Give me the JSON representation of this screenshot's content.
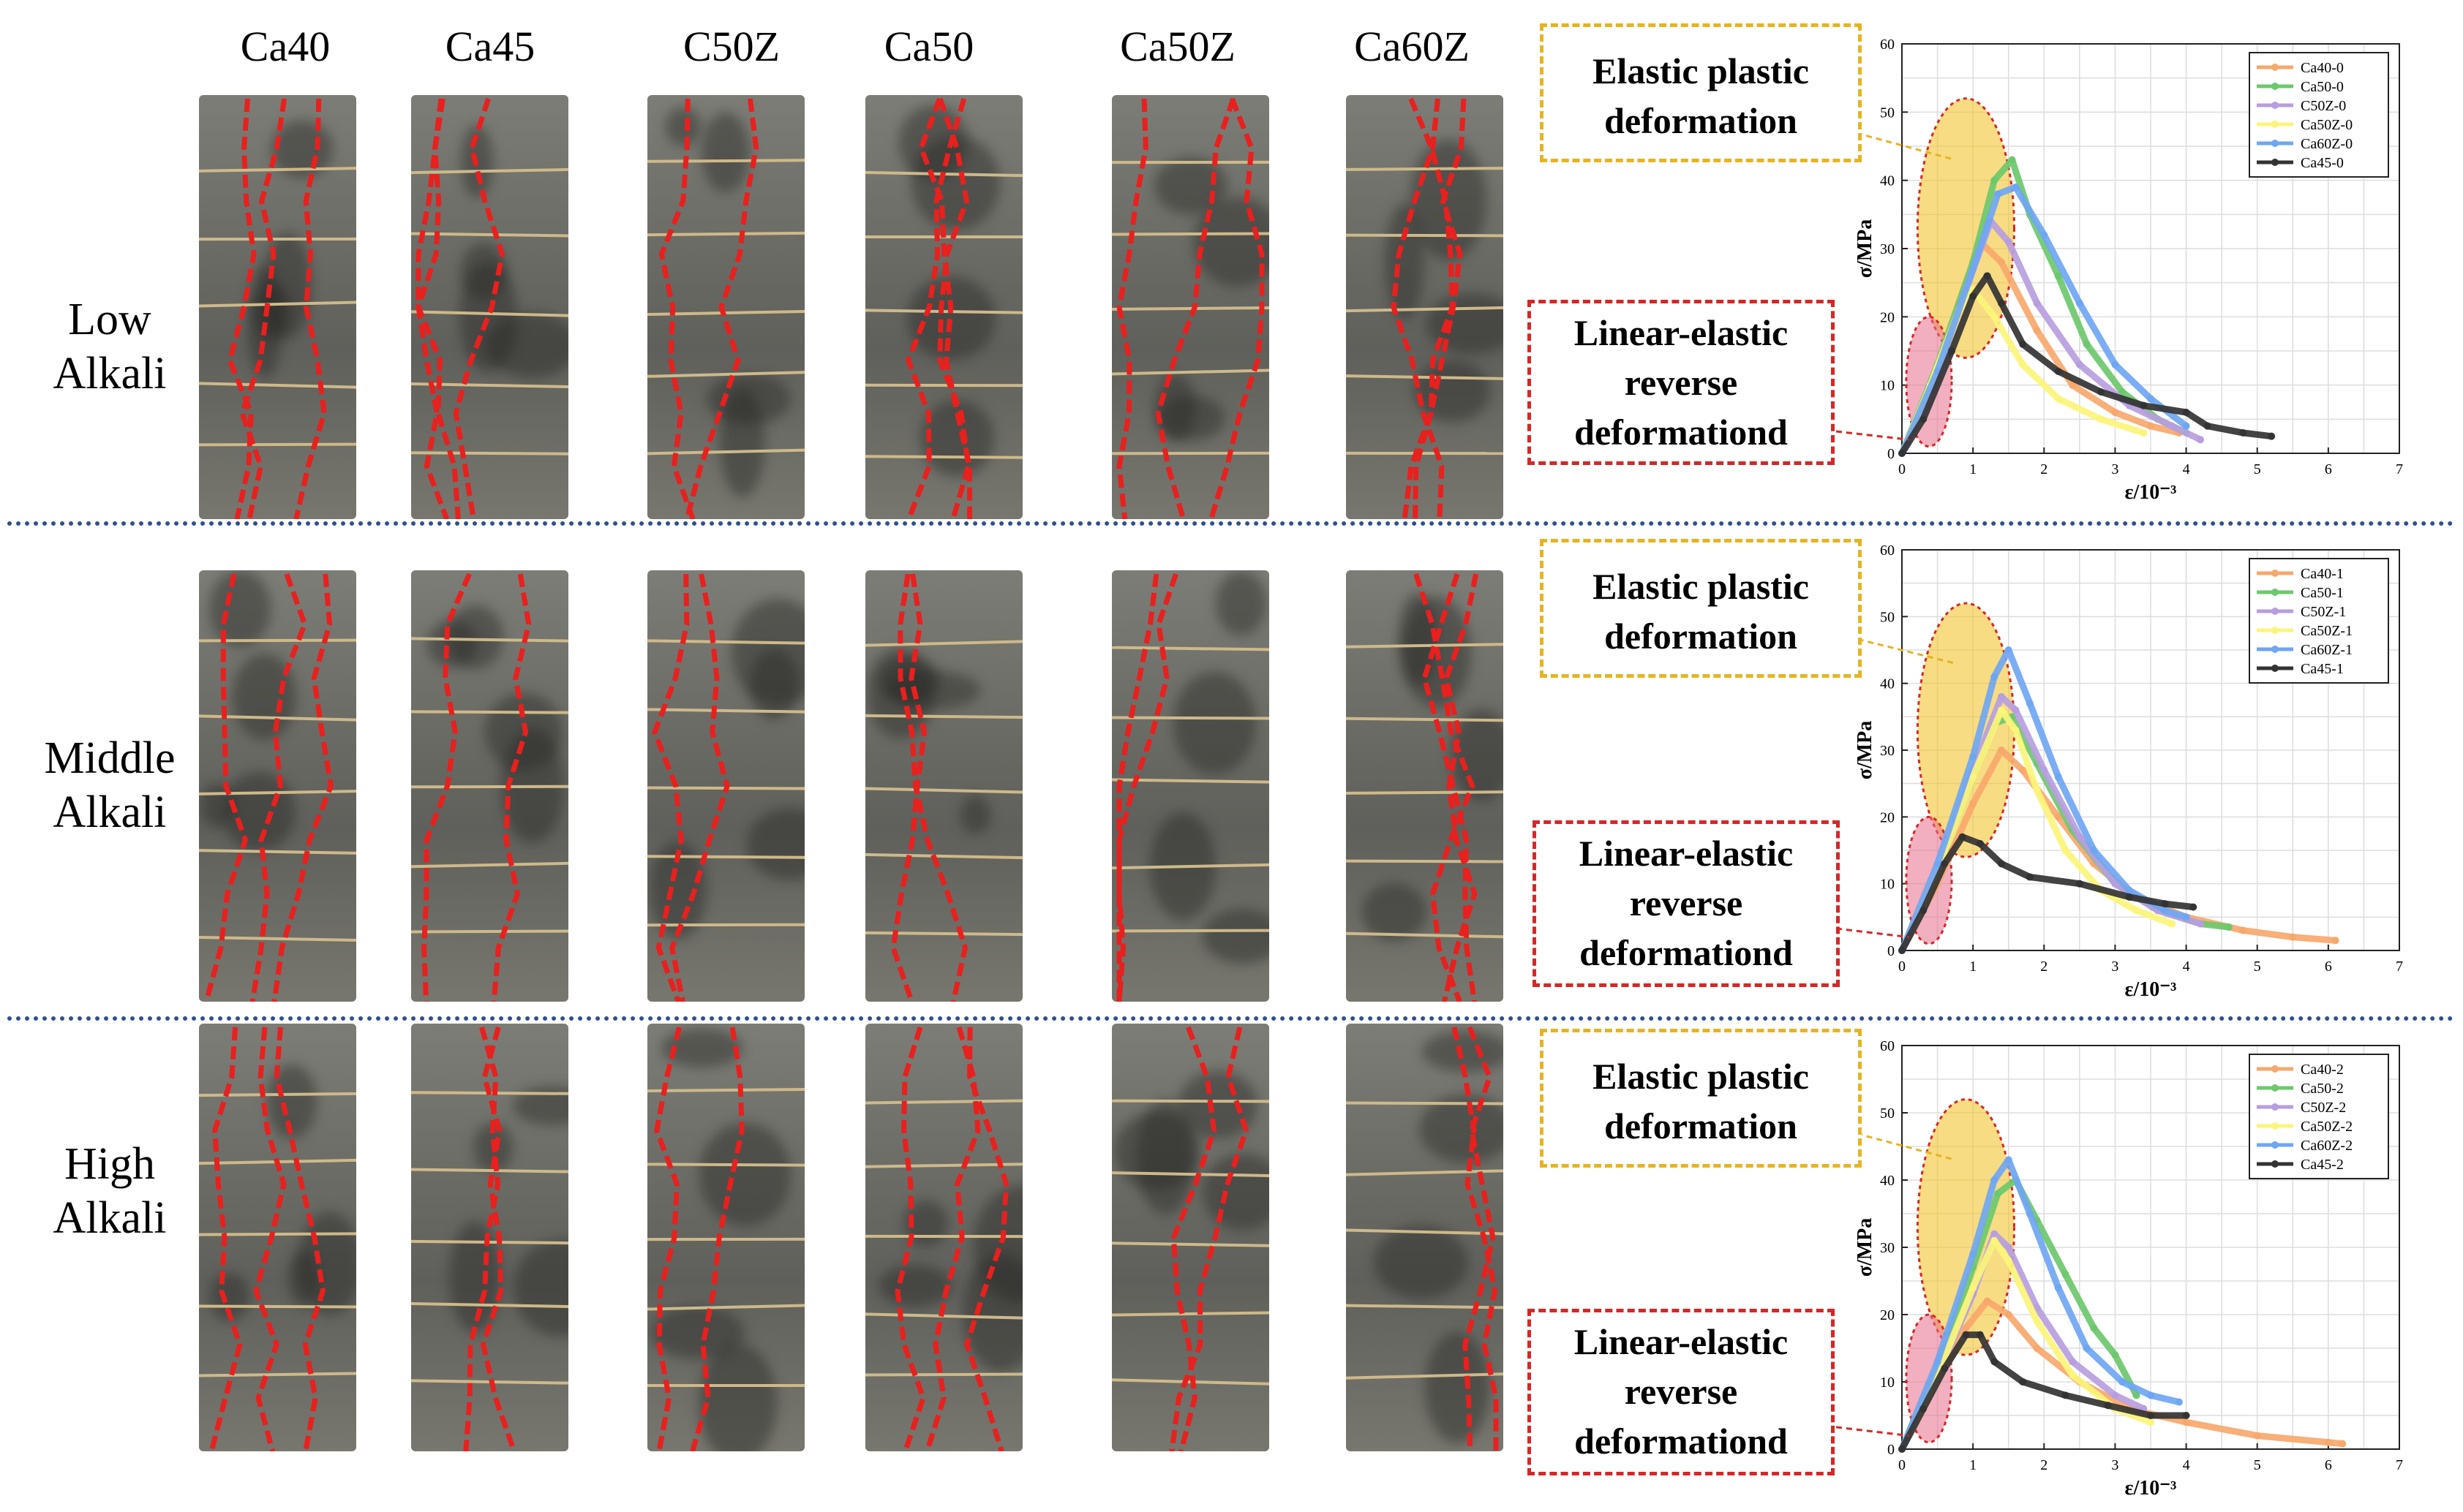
{
  "columns": [
    "Ca40",
    "Ca45",
    "C50Z",
    "Ca50",
    "Ca50Z",
    "Ca60Z"
  ],
  "rows": [
    {
      "label_line1": "Low",
      "label_line2": "Alkali"
    },
    {
      "label_line1": "Middle",
      "label_line2": "Alkali"
    },
    {
      "label_line1": "High",
      "label_line2": "Alkali"
    }
  ],
  "annotations": {
    "elastic_line1": "Elastic plastic",
    "elastic_line2": "deformation",
    "linear_line1": "Linear-elastic",
    "linear_line2": "reverse",
    "linear_line3": "deformationd"
  },
  "colors": {
    "Ca40": "#f7a86c",
    "Ca50": "#6dc86d",
    "C50Z": "#b79ee0",
    "Ca50Z": "#fbf57a",
    "Ca60Z": "#6fa6f3",
    "Ca45": "#333333",
    "crack": "#e8201e",
    "elastic_box": "#e6b422",
    "linear_box": "#d62728",
    "separator": "#2f4f8f"
  },
  "chart_data": [
    {
      "type": "line",
      "xlabel": "ε/10⁻³",
      "ylabel": "σ/MPa",
      "xlim": [
        0,
        7
      ],
      "ylim": [
        0,
        60
      ],
      "xticks": [
        0,
        1,
        2,
        3,
        4,
        5,
        6,
        7
      ],
      "yticks": [
        0,
        10,
        20,
        30,
        40,
        50,
        60
      ],
      "grid": true,
      "legend_position": "top-right",
      "series": [
        {
          "name": "Ca40-0",
          "color": "#f7a86c",
          "points": [
            [
              0,
              0
            ],
            [
              0.4,
              10
            ],
            [
              0.8,
              22
            ],
            [
              1.1,
              31
            ],
            [
              1.4,
              28
            ],
            [
              1.9,
              18
            ],
            [
              2.4,
              10
            ],
            [
              3.0,
              6
            ],
            [
              3.5,
              4
            ],
            [
              3.9,
              3
            ]
          ]
        },
        {
          "name": "Ca50-0",
          "color": "#6dc86d",
          "points": [
            [
              0,
              0
            ],
            [
              0.5,
              13
            ],
            [
              1.0,
              28
            ],
            [
              1.3,
              40
            ],
            [
              1.55,
              43
            ],
            [
              1.8,
              35
            ],
            [
              2.2,
              26
            ],
            [
              2.6,
              16
            ],
            [
              3.1,
              9
            ],
            [
              3.6,
              5
            ],
            [
              4.0,
              3
            ]
          ]
        },
        {
          "name": "C50Z-0",
          "color": "#b79ee0",
          "points": [
            [
              0,
              0
            ],
            [
              0.5,
              12
            ],
            [
              0.9,
              24
            ],
            [
              1.25,
              34
            ],
            [
              1.5,
              31
            ],
            [
              1.9,
              22
            ],
            [
              2.5,
              13
            ],
            [
              3.2,
              7
            ],
            [
              3.8,
              4
            ],
            [
              4.2,
              2
            ]
          ]
        },
        {
          "name": "Ca50Z-0",
          "color": "#fbf57a",
          "points": [
            [
              0,
              0
            ],
            [
              0.4,
              10
            ],
            [
              0.8,
              21
            ],
            [
              1.0,
              24
            ],
            [
              1.3,
              20
            ],
            [
              1.7,
              13
            ],
            [
              2.2,
              8
            ],
            [
              2.8,
              5
            ],
            [
              3.4,
              3
            ]
          ]
        },
        {
          "name": "Ca60Z-0",
          "color": "#6fa6f3",
          "points": [
            [
              0,
              0
            ],
            [
              0.5,
              12
            ],
            [
              1.0,
              27
            ],
            [
              1.35,
              38
            ],
            [
              1.6,
              39
            ],
            [
              2.0,
              32
            ],
            [
              2.5,
              22
            ],
            [
              3.0,
              13
            ],
            [
              3.5,
              8
            ],
            [
              4.0,
              4
            ]
          ]
        },
        {
          "name": "Ca45-0",
          "color": "#333333",
          "points": [
            [
              0,
              0
            ],
            [
              0.3,
              5
            ],
            [
              0.7,
              15
            ],
            [
              1.0,
              23
            ],
            [
              1.2,
              26
            ],
            [
              1.4,
              22
            ],
            [
              1.7,
              16
            ],
            [
              2.2,
              12
            ],
            [
              2.8,
              9
            ],
            [
              3.4,
              7
            ],
            [
              4.0,
              6
            ],
            [
              4.3,
              4
            ],
            [
              4.8,
              3
            ],
            [
              5.2,
              2.5
            ]
          ]
        }
      ]
    },
    {
      "type": "line",
      "xlabel": "ε/10⁻³",
      "ylabel": "σ/MPa",
      "xlim": [
        0,
        7
      ],
      "ylim": [
        0,
        60
      ],
      "xticks": [
        0,
        1,
        2,
        3,
        4,
        5,
        6,
        7
      ],
      "yticks": [
        0,
        10,
        20,
        30,
        40,
        50,
        60
      ],
      "grid": true,
      "legend_position": "top-right",
      "series": [
        {
          "name": "Ca40-1",
          "color": "#f7a86c",
          "points": [
            [
              0,
              0
            ],
            [
              0.5,
              10
            ],
            [
              1.0,
              22
            ],
            [
              1.4,
              30
            ],
            [
              1.7,
              27
            ],
            [
              2.2,
              20
            ],
            [
              2.7,
              13
            ],
            [
              3.3,
              8
            ],
            [
              4.0,
              5
            ],
            [
              4.8,
              3
            ],
            [
              5.5,
              2
            ],
            [
              6.1,
              1.5
            ]
          ]
        },
        {
          "name": "Ca50-1",
          "color": "#6dc86d",
          "points": [
            [
              0,
              0
            ],
            [
              0.5,
              12
            ],
            [
              1.0,
              26
            ],
            [
              1.3,
              34
            ],
            [
              1.55,
              35
            ],
            [
              1.9,
              28
            ],
            [
              2.4,
              18
            ],
            [
              3.0,
              10
            ],
            [
              3.6,
              6
            ],
            [
              4.2,
              4
            ],
            [
              4.6,
              3.5
            ]
          ]
        },
        {
          "name": "C50Z-1",
          "color": "#b79ee0",
          "points": [
            [
              0,
              0
            ],
            [
              0.5,
              12
            ],
            [
              1.0,
              27
            ],
            [
              1.4,
              38
            ],
            [
              1.6,
              36
            ],
            [
              2.0,
              27
            ],
            [
              2.5,
              17
            ],
            [
              3.0,
              10
            ],
            [
              3.6,
              6
            ],
            [
              4.2,
              4
            ]
          ]
        },
        {
          "name": "Ca50Z-1",
          "color": "#fbf57a",
          "points": [
            [
              0,
              0
            ],
            [
              0.5,
              12
            ],
            [
              1.0,
              26
            ],
            [
              1.4,
              36
            ],
            [
              1.6,
              33
            ],
            [
              1.9,
              24
            ],
            [
              2.3,
              15
            ],
            [
              2.8,
              9
            ],
            [
              3.3,
              6
            ],
            [
              3.8,
              4
            ]
          ]
        },
        {
          "name": "Ca60Z-1",
          "color": "#6fa6f3",
          "points": [
            [
              0,
              0
            ],
            [
              0.5,
              13
            ],
            [
              1.0,
              29
            ],
            [
              1.3,
              41
            ],
            [
              1.5,
              45
            ],
            [
              1.8,
              37
            ],
            [
              2.2,
              26
            ],
            [
              2.7,
              15
            ],
            [
              3.2,
              9
            ],
            [
              3.7,
              6
            ],
            [
              4.0,
              5
            ]
          ]
        },
        {
          "name": "Ca45-1",
          "color": "#333333",
          "points": [
            [
              0,
              0
            ],
            [
              0.3,
              6
            ],
            [
              0.6,
              13
            ],
            [
              0.85,
              17
            ],
            [
              1.1,
              16
            ],
            [
              1.4,
              13
            ],
            [
              1.8,
              11
            ],
            [
              2.5,
              10
            ],
            [
              3.2,
              8
            ],
            [
              3.7,
              7
            ],
            [
              4.1,
              6.5
            ]
          ]
        }
      ]
    },
    {
      "type": "line",
      "xlabel": "ε/10⁻³",
      "ylabel": "σ/MPa",
      "xlim": [
        0,
        7
      ],
      "ylim": [
        0,
        60
      ],
      "xticks": [
        0,
        1,
        2,
        3,
        4,
        5,
        6,
        7
      ],
      "yticks": [
        0,
        10,
        20,
        30,
        40,
        50,
        60
      ],
      "grid": true,
      "legend_position": "top-right",
      "series": [
        {
          "name": "Ca40-2",
          "color": "#f7a86c",
          "points": [
            [
              0,
              0
            ],
            [
              0.5,
              10
            ],
            [
              0.9,
              18
            ],
            [
              1.2,
              22
            ],
            [
              1.5,
              20
            ],
            [
              1.9,
              15
            ],
            [
              2.5,
              10
            ],
            [
              3.2,
              6
            ],
            [
              4.0,
              4
            ],
            [
              5.0,
              2
            ],
            [
              6.0,
              1
            ],
            [
              6.2,
              0.8
            ]
          ]
        },
        {
          "name": "Ca50-2",
          "color": "#6dc86d",
          "points": [
            [
              0,
              0
            ],
            [
              0.5,
              12
            ],
            [
              1.0,
              27
            ],
            [
              1.35,
              38
            ],
            [
              1.6,
              40
            ],
            [
              1.9,
              34
            ],
            [
              2.3,
              26
            ],
            [
              2.7,
              18
            ],
            [
              3.0,
              14
            ],
            [
              3.3,
              8
            ]
          ]
        },
        {
          "name": "C50Z-2",
          "color": "#b79ee0",
          "points": [
            [
              0,
              0
            ],
            [
              0.5,
              11
            ],
            [
              1.0,
              23
            ],
            [
              1.3,
              32
            ],
            [
              1.5,
              30
            ],
            [
              1.9,
              21
            ],
            [
              2.4,
              13
            ],
            [
              3.0,
              8
            ],
            [
              3.4,
              6
            ]
          ]
        },
        {
          "name": "Ca50Z-2",
          "color": "#fbf57a",
          "points": [
            [
              0,
              0
            ],
            [
              0.5,
              11
            ],
            [
              1.0,
              24
            ],
            [
              1.3,
              31
            ],
            [
              1.5,
              28
            ],
            [
              1.9,
              19
            ],
            [
              2.4,
              11
            ],
            [
              3.0,
              6
            ],
            [
              3.5,
              4
            ]
          ]
        },
        {
          "name": "Ca60Z-2",
          "color": "#6fa6f3",
          "points": [
            [
              0,
              0
            ],
            [
              0.5,
              13
            ],
            [
              1.0,
              29
            ],
            [
              1.3,
              40
            ],
            [
              1.5,
              43
            ],
            [
              1.8,
              35
            ],
            [
              2.2,
              24
            ],
            [
              2.6,
              15
            ],
            [
              3.1,
              10
            ],
            [
              3.5,
              8
            ],
            [
              3.9,
              7
            ]
          ]
        },
        {
          "name": "Ca45-2",
          "color": "#333333",
          "points": [
            [
              0,
              0
            ],
            [
              0.3,
              6
            ],
            [
              0.6,
              12
            ],
            [
              0.9,
              17
            ],
            [
              1.1,
              17
            ],
            [
              1.3,
              13
            ],
            [
              1.7,
              10
            ],
            [
              2.3,
              8
            ],
            [
              2.9,
              6.5
            ],
            [
              3.5,
              5
            ],
            [
              4.0,
              5
            ]
          ]
        }
      ]
    }
  ]
}
